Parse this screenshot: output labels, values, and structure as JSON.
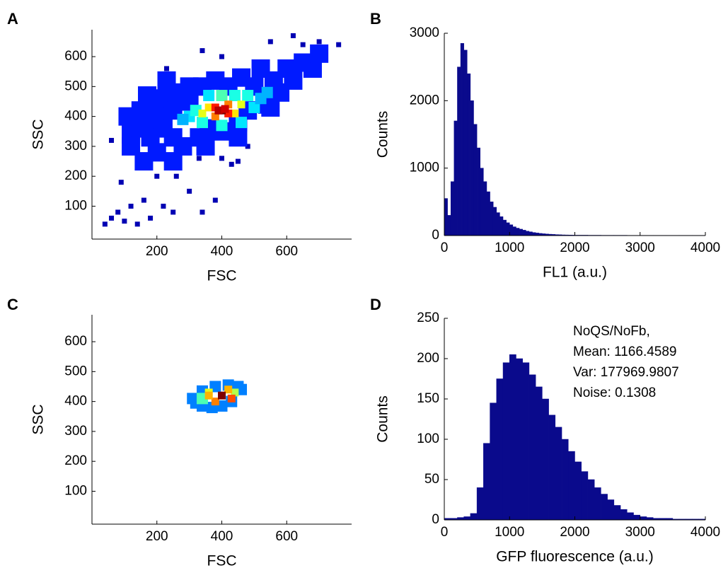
{
  "chart_data": [
    {
      "type": "scatter",
      "panel_label": "A",
      "x_label": "FSC",
      "y_label": "SSC",
      "colormap": "jet",
      "xlim": [
        0,
        800
      ],
      "ylim": [
        -10,
        690
      ],
      "xticks": [
        200,
        400,
        600
      ],
      "yticks": [
        100,
        200,
        300,
        400,
        500,
        600
      ],
      "x": [
        40,
        60,
        80,
        100,
        140,
        160,
        180,
        220,
        260,
        300,
        340,
        380,
        330,
        400,
        430,
        450,
        480,
        340,
        400,
        230,
        550,
        620,
        700,
        760,
        650,
        120,
        200,
        250,
        90,
        60,
        120,
        150,
        150,
        180,
        180,
        200,
        220,
        220,
        250,
        250,
        260,
        280,
        300,
        300,
        330,
        340,
        360,
        380,
        400,
        420,
        450,
        460,
        480,
        500,
        520,
        540,
        560,
        580,
        600,
        620,
        650,
        680,
        700,
        160,
        200,
        250,
        350,
        450,
        550,
        230,
        170,
        120,
        110,
        300,
        320,
        340,
        500,
        480,
        520,
        360,
        440,
        460,
        280,
        540,
        400,
        400,
        340,
        360,
        440,
        460,
        380,
        420,
        380,
        420,
        400,
        390,
        410
      ],
      "y": [
        40,
        60,
        80,
        50,
        40,
        120,
        60,
        100,
        200,
        150,
        80,
        120,
        260,
        260,
        240,
        250,
        300,
        620,
        600,
        560,
        650,
        670,
        650,
        640,
        640,
        100,
        200,
        80,
        180,
        320,
        340,
        360,
        420,
        380,
        330,
        420,
        360,
        460,
        330,
        420,
        480,
        300,
        450,
        500,
        330,
        500,
        360,
        520,
        350,
        500,
        380,
        530,
        420,
        500,
        560,
        440,
        520,
        480,
        560,
        520,
        580,
        560,
        610,
        250,
        280,
        250,
        300,
        330,
        430,
        520,
        470,
        300,
        400,
        400,
        420,
        380,
        430,
        470,
        460,
        470,
        470,
        380,
        390,
        480,
        470,
        370,
        410,
        430,
        410,
        440,
        400,
        440,
        430,
        410,
        420,
        420,
        425
      ],
      "density": [
        0.05,
        0.05,
        0.05,
        0.05,
        0.05,
        0.05,
        0.05,
        0.05,
        0.05,
        0.05,
        0.05,
        0.05,
        0.05,
        0.05,
        0.05,
        0.05,
        0.05,
        0.05,
        0.05,
        0.05,
        0.05,
        0.05,
        0.05,
        0.05,
        0.05,
        0.05,
        0.05,
        0.05,
        0.05,
        0.05,
        0.15,
        0.15,
        0.15,
        0.15,
        0.15,
        0.15,
        0.15,
        0.15,
        0.15,
        0.15,
        0.15,
        0.15,
        0.15,
        0.15,
        0.15,
        0.15,
        0.15,
        0.15,
        0.15,
        0.15,
        0.15,
        0.15,
        0.15,
        0.15,
        0.15,
        0.15,
        0.15,
        0.15,
        0.15,
        0.15,
        0.15,
        0.15,
        0.15,
        0.15,
        0.15,
        0.15,
        0.15,
        0.15,
        0.15,
        0.15,
        0.15,
        0.15,
        0.15,
        0.35,
        0.4,
        0.4,
        0.35,
        0.4,
        0.3,
        0.35,
        0.4,
        0.35,
        0.3,
        0.3,
        0.45,
        0.4,
        0.6,
        0.65,
        0.65,
        0.6,
        0.75,
        0.75,
        0.85,
        0.85,
        1,
        0.95,
        0.92
      ]
    },
    {
      "type": "histogram",
      "panel_label": "B",
      "x_label": "FL1 (a.u.)",
      "y_label": "Counts",
      "color": "#0a0a8c",
      "xlim": [
        0,
        4000
      ],
      "ylim": [
        0,
        3000
      ],
      "xticks": [
        0,
        1000,
        2000,
        3000,
        4000
      ],
      "yticks": [
        0,
        1000,
        2000,
        3000
      ],
      "bins": [
        0,
        50,
        100,
        150,
        200,
        250,
        300,
        350,
        400,
        450,
        500,
        550,
        600,
        650,
        700,
        750,
        800,
        850,
        900,
        950,
        1000,
        1050,
        1100,
        1150,
        1200,
        1250,
        1300,
        1350,
        1400,
        1450,
        1500,
        1550,
        1600,
        1650,
        1700,
        1750,
        1800,
        1850,
        1900,
        1950,
        2000,
        2200,
        2400,
        2600,
        2800,
        3000,
        3200,
        3400,
        3600,
        3800,
        4000
      ],
      "counts": [
        550,
        300,
        800,
        1700,
        2500,
        2850,
        2750,
        2400,
        2000,
        1650,
        1300,
        1000,
        800,
        650,
        500,
        420,
        340,
        280,
        230,
        190,
        160,
        130,
        110,
        95,
        80,
        65,
        55,
        45,
        38,
        32,
        27,
        23,
        20,
        17,
        14,
        12,
        10,
        9,
        8,
        7,
        6,
        5,
        4,
        4,
        3,
        3,
        3,
        3,
        3,
        3
      ]
    },
    {
      "type": "scatter",
      "panel_label": "C",
      "x_label": "FSC",
      "y_label": "SSC",
      "colormap": "jet",
      "xlim": [
        0,
        800
      ],
      "ylim": [
        -10,
        690
      ],
      "xticks": [
        200,
        400,
        600
      ],
      "yticks": [
        100,
        200,
        300,
        400,
        500,
        600
      ],
      "x": [
        320,
        340,
        370,
        400,
        430,
        460,
        450,
        420,
        380,
        340,
        310,
        340,
        360,
        440,
        380,
        420,
        400,
        360,
        430
      ],
      "y": [
        395,
        385,
        380,
        385,
        400,
        440,
        450,
        455,
        450,
        435,
        410,
        410,
        430,
        430,
        400,
        440,
        420,
        420,
        410
      ],
      "density": [
        0.25,
        0.25,
        0.25,
        0.25,
        0.25,
        0.25,
        0.25,
        0.25,
        0.25,
        0.25,
        0.25,
        0.45,
        0.6,
        0.55,
        0.75,
        0.7,
        1,
        0.7,
        0.8
      ]
    },
    {
      "type": "histogram",
      "panel_label": "D",
      "x_label": "GFP fluorescence (a.u.)",
      "y_label": "Counts",
      "color": "#0a0a8c",
      "annotations": [
        "NoQS/NoFb,",
        "Mean: 1166.4589",
        "Var: 177969.9807",
        "Noise: 0.1308"
      ],
      "xlim": [
        0,
        4000
      ],
      "ylim": [
        0,
        250
      ],
      "xticks": [
        0,
        1000,
        2000,
        3000,
        4000
      ],
      "yticks": [
        0,
        50,
        100,
        150,
        200,
        250
      ],
      "bins": [
        0,
        100,
        200,
        300,
        400,
        500,
        600,
        700,
        800,
        900,
        1000,
        1100,
        1200,
        1300,
        1400,
        1500,
        1600,
        1700,
        1800,
        1900,
        2000,
        2100,
        2200,
        2300,
        2400,
        2500,
        2600,
        2700,
        2800,
        2900,
        3000,
        3100,
        3200,
        3300,
        3400,
        3500,
        3600,
        3700,
        3800,
        3900,
        4000
      ],
      "counts": [
        2,
        2,
        3,
        4,
        8,
        40,
        95,
        145,
        175,
        195,
        205,
        200,
        195,
        180,
        165,
        150,
        130,
        115,
        100,
        85,
        72,
        60,
        50,
        40,
        32,
        25,
        18,
        13,
        9,
        6,
        4,
        3,
        2,
        2,
        2,
        1,
        1,
        1,
        1,
        1
      ]
    }
  ]
}
